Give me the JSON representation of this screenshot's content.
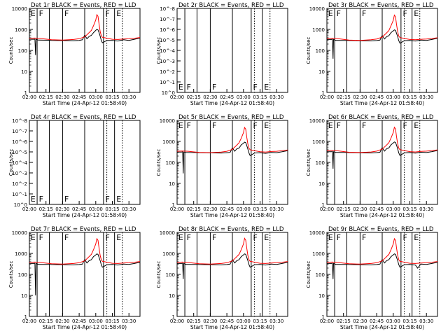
{
  "window": {
    "width": 640,
    "height": 480
  },
  "colors": {
    "events": "#000000",
    "lld": "#ff0000",
    "background": "#ffffff",
    "axis": "#000000"
  },
  "common": {
    "xlabel": "Start Time (24-Apr-12 01:58:40)",
    "ylabel": "Counts/sec",
    "x_ticks": [
      "02:00",
      "02:15",
      "02:30",
      "02:45",
      "03:00",
      "03:15",
      "03:30"
    ],
    "x_tick_minutes": [
      120,
      135,
      150,
      165,
      180,
      195,
      210
    ],
    "xlim_minutes": [
      120,
      220
    ],
    "flag_lines_minutes": [
      127,
      138,
      150,
      170,
      187,
      197
    ],
    "dotted_lines_minutes": [
      190,
      204
    ],
    "flag_letters": [
      {
        "minute": 120.5,
        "text": "E"
      },
      {
        "minute": 128,
        "text": "F"
      },
      {
        "minute": 151,
        "text": "F"
      },
      {
        "minute": 188,
        "text": "F"
      },
      {
        "minute": 198,
        "text": "E"
      }
    ]
  },
  "chart_data": [
    {
      "type": "line",
      "title": "Det 1r BLACK = Events, RED = LLD",
      "yscale": "log",
      "ylim": [
        1,
        10000
      ],
      "y_ticks": [
        "1",
        "10",
        "100",
        "1000",
        "10000"
      ],
      "has_data": true,
      "series": [
        {
          "name": "Events",
          "color": "#000000",
          "x": [
            120,
            124,
            125,
            125.6,
            126,
            128,
            138,
            140,
            150,
            160,
            165,
            168,
            170,
            172,
            174,
            176,
            178,
            180,
            181,
            182,
            183,
            184,
            185,
            186,
            188,
            190,
            195,
            200,
            205,
            210,
            215,
            220
          ],
          "y": [
            340,
            340,
            345,
            60,
            340,
            310,
            305,
            300,
            295,
            290,
            300,
            320,
            540,
            360,
            460,
            520,
            700,
            900,
            1000,
            950,
            700,
            480,
            300,
            230,
            260,
            300,
            300,
            280,
            320,
            300,
            340,
            390
          ]
        },
        {
          "name": "LLD",
          "color": "#ff0000",
          "x": [
            120,
            125,
            130,
            140,
            150,
            160,
            165,
            170,
            174,
            176,
            178,
            180,
            181,
            182,
            183,
            184,
            185,
            186,
            188,
            190,
            195,
            200,
            205,
            210,
            215,
            220
          ],
          "y": [
            380,
            385,
            370,
            320,
            310,
            330,
            360,
            440,
            700,
            900,
            1500,
            2800,
            5000,
            4200,
            1800,
            800,
            500,
            420,
            400,
            380,
            340,
            330,
            350,
            360,
            380,
            410
          ]
        }
      ]
    },
    {
      "type": "line",
      "title": "Det 2r BLACK = Events, RED = LLD",
      "yscale": "log",
      "ylim": [
        1,
        1e-08
      ],
      "y_ticks": [
        "10^0",
        "10^-1",
        "10^-2",
        "10^-3",
        "10^-4",
        "10^-5",
        "10^-6",
        "10^-7",
        "10^-8"
      ],
      "has_data": false,
      "series": []
    },
    {
      "type": "line",
      "title": "Det 3r BLACK = Events, RED = LLD",
      "yscale": "log",
      "ylim": [
        1,
        10000
      ],
      "y_ticks": [
        "1",
        "10",
        "100",
        "1000",
        "10000"
      ],
      "has_data": true,
      "series": [
        {
          "name": "Events",
          "color": "#000000",
          "x": [
            120,
            124,
            125,
            125.6,
            126,
            128,
            138,
            140,
            150,
            160,
            165,
            168,
            170,
            172,
            174,
            176,
            178,
            180,
            181,
            182,
            183,
            184,
            185,
            186,
            188,
            190,
            195,
            200,
            205,
            210,
            215,
            220
          ],
          "y": [
            330,
            330,
            340,
            40,
            330,
            300,
            300,
            295,
            290,
            285,
            295,
            310,
            520,
            350,
            450,
            500,
            700,
            850,
            950,
            900,
            650,
            450,
            290,
            220,
            250,
            290,
            300,
            280,
            310,
            300,
            330,
            380
          ]
        },
        {
          "name": "LLD",
          "color": "#ff0000",
          "x": [
            120,
            125,
            130,
            140,
            150,
            160,
            165,
            170,
            174,
            176,
            178,
            180,
            181,
            182,
            183,
            184,
            185,
            186,
            188,
            190,
            195,
            200,
            205,
            210,
            215,
            220
          ],
          "y": [
            370,
            380,
            360,
            310,
            300,
            320,
            350,
            430,
            680,
            880,
            1500,
            2700,
            4800,
            4000,
            1700,
            780,
            480,
            410,
            390,
            370,
            330,
            320,
            340,
            350,
            370,
            400
          ]
        }
      ]
    },
    {
      "type": "line",
      "title": "Det 4r BLACK = Events, RED = LLD",
      "yscale": "log",
      "ylim": [
        1,
        1e-08
      ],
      "y_ticks": [
        "10^0",
        "10^-1",
        "10^-2",
        "10^-3",
        "10^-4",
        "10^-5",
        "10^-6",
        "10^-7",
        "10^-8"
      ],
      "has_data": false,
      "series": []
    },
    {
      "type": "line",
      "title": "Det 5r BLACK = Events, RED = LLD",
      "yscale": "log",
      "ylim": [
        1,
        10000
      ],
      "y_ticks": [
        "1",
        "10",
        "100",
        "1000",
        "10000"
      ],
      "has_data": true,
      "series": [
        {
          "name": "Events",
          "color": "#000000",
          "x": [
            120,
            124,
            125,
            125.6,
            126,
            128,
            138,
            140,
            150,
            160,
            165,
            168,
            170,
            172,
            174,
            176,
            178,
            180,
            181,
            182,
            183,
            184,
            185,
            186,
            188,
            190,
            195,
            200,
            205,
            210,
            215,
            220
          ],
          "y": [
            310,
            310,
            320,
            30,
            310,
            300,
            295,
            290,
            285,
            280,
            290,
            300,
            500,
            340,
            440,
            480,
            680,
            820,
            920,
            880,
            640,
            430,
            280,
            210,
            240,
            280,
            290,
            270,
            300,
            290,
            320,
            360
          ]
        },
        {
          "name": "LLD",
          "color": "#ff0000",
          "x": [
            120,
            125,
            130,
            140,
            150,
            160,
            165,
            170,
            174,
            176,
            178,
            180,
            181,
            182,
            183,
            184,
            185,
            186,
            188,
            190,
            195,
            200,
            205,
            210,
            215,
            220
          ],
          "y": [
            340,
            350,
            340,
            300,
            290,
            310,
            340,
            420,
            660,
            860,
            1400,
            2600,
            4600,
            3900,
            1600,
            760,
            470,
            400,
            380,
            360,
            320,
            310,
            330,
            340,
            360,
            390
          ]
        }
      ]
    },
    {
      "type": "line",
      "title": "Det 6r BLACK = Events, RED = LLD",
      "yscale": "log",
      "ylim": [
        1,
        10000
      ],
      "y_ticks": [
        "1",
        "10",
        "100",
        "1000",
        "10000"
      ],
      "has_data": true,
      "series": [
        {
          "name": "Events",
          "color": "#000000",
          "x": [
            120,
            124,
            125,
            125.6,
            126,
            128,
            138,
            140,
            150,
            160,
            165,
            168,
            170,
            172,
            174,
            176,
            178,
            180,
            181,
            182,
            183,
            184,
            185,
            186,
            188,
            190,
            195,
            200,
            205,
            210,
            215,
            220
          ],
          "y": [
            320,
            320,
            330,
            50,
            320,
            300,
            298,
            292,
            288,
            282,
            292,
            305,
            510,
            345,
            445,
            490,
            690,
            840,
            940,
            890,
            660,
            440,
            285,
            215,
            245,
            285,
            295,
            275,
            305,
            295,
            325,
            370
          ]
        },
        {
          "name": "LLD",
          "color": "#ff0000",
          "x": [
            120,
            125,
            130,
            140,
            150,
            160,
            165,
            170,
            174,
            176,
            178,
            180,
            181,
            182,
            183,
            184,
            185,
            186,
            188,
            190,
            195,
            200,
            205,
            210,
            215,
            220
          ],
          "y": [
            360,
            370,
            355,
            305,
            295,
            315,
            345,
            425,
            670,
            870,
            1450,
            2650,
            4700,
            3950,
            1650,
            770,
            475,
            405,
            385,
            365,
            325,
            315,
            335,
            345,
            365,
            395
          ]
        }
      ]
    },
    {
      "type": "line",
      "title": "Det 7r BLACK = Events, RED = LLD",
      "yscale": "log",
      "ylim": [
        1,
        10000
      ],
      "y_ticks": [
        "1",
        "10",
        "100",
        "1000",
        "10000"
      ],
      "has_data": true,
      "series": [
        {
          "name": "Events",
          "color": "#000000",
          "x": [
            120,
            124,
            125,
            125.6,
            126,
            128,
            138,
            140,
            150,
            160,
            165,
            168,
            170,
            172,
            174,
            176,
            178,
            180,
            181,
            182,
            183,
            184,
            185,
            186,
            188,
            190,
            195,
            200,
            205,
            210,
            215,
            220
          ],
          "y": [
            330,
            330,
            340,
            10,
            330,
            300,
            300,
            295,
            290,
            285,
            295,
            310,
            520,
            350,
            450,
            500,
            700,
            850,
            950,
            900,
            650,
            450,
            290,
            220,
            250,
            290,
            300,
            280,
            310,
            300,
            330,
            380
          ]
        },
        {
          "name": "LLD",
          "color": "#ff0000",
          "x": [
            120,
            125,
            130,
            140,
            150,
            160,
            165,
            170,
            174,
            176,
            178,
            180,
            181,
            182,
            183,
            184,
            185,
            186,
            188,
            190,
            195,
            200,
            205,
            210,
            215,
            220
          ],
          "y": [
            380,
            385,
            370,
            320,
            310,
            330,
            360,
            440,
            700,
            900,
            1500,
            2800,
            5000,
            4200,
            1800,
            800,
            500,
            420,
            400,
            380,
            340,
            330,
            350,
            360,
            380,
            410
          ]
        }
      ]
    },
    {
      "type": "line",
      "title": "Det 8r BLACK = Events, RED = LLD",
      "yscale": "log",
      "ylim": [
        1,
        10000
      ],
      "y_ticks": [
        "1",
        "10",
        "100",
        "1000",
        "10000"
      ],
      "has_data": true,
      "series": [
        {
          "name": "Events",
          "color": "#000000",
          "x": [
            120,
            124,
            125,
            125.6,
            126,
            128,
            138,
            140,
            150,
            160,
            165,
            168,
            170,
            172,
            174,
            176,
            178,
            180,
            181,
            182,
            183,
            184,
            185,
            186,
            188,
            190,
            195,
            200,
            205,
            210,
            215,
            220
          ],
          "y": [
            330,
            330,
            340,
            60,
            330,
            300,
            300,
            295,
            290,
            285,
            295,
            310,
            520,
            350,
            450,
            500,
            700,
            850,
            950,
            900,
            650,
            450,
            290,
            220,
            250,
            290,
            300,
            280,
            310,
            300,
            330,
            380
          ]
        },
        {
          "name": "LLD",
          "color": "#ff0000",
          "x": [
            120,
            125,
            130,
            140,
            150,
            160,
            165,
            170,
            174,
            176,
            178,
            180,
            181,
            182,
            183,
            184,
            185,
            186,
            188,
            190,
            195,
            200,
            205,
            210,
            215,
            220
          ],
          "y": [
            380,
            385,
            370,
            320,
            310,
            330,
            360,
            440,
            700,
            900,
            1500,
            2800,
            5200,
            4300,
            1800,
            800,
            500,
            420,
            400,
            380,
            340,
            330,
            350,
            360,
            380,
            410
          ]
        }
      ]
    },
    {
      "type": "line",
      "title": "Det 9r BLACK = Events, RED = LLD",
      "yscale": "log",
      "ylim": [
        1,
        10000
      ],
      "y_ticks": [
        "1",
        "10",
        "100",
        "1000",
        "10000"
      ],
      "has_data": true,
      "series": [
        {
          "name": "Events",
          "color": "#000000",
          "x": [
            120,
            124,
            125,
            125.6,
            126,
            128,
            138,
            140,
            150,
            160,
            165,
            168,
            170,
            172,
            174,
            176,
            178,
            180,
            181,
            182,
            183,
            184,
            185,
            186,
            188,
            190,
            195,
            200,
            202,
            205,
            210,
            215,
            220
          ],
          "y": [
            330,
            330,
            340,
            60,
            330,
            300,
            300,
            295,
            290,
            285,
            295,
            310,
            520,
            350,
            450,
            500,
            700,
            850,
            950,
            900,
            650,
            450,
            290,
            220,
            250,
            290,
            300,
            280,
            200,
            310,
            300,
            330,
            380
          ]
        },
        {
          "name": "LLD",
          "color": "#ff0000",
          "x": [
            120,
            125,
            130,
            140,
            150,
            160,
            165,
            170,
            174,
            176,
            178,
            180,
            181,
            182,
            183,
            184,
            185,
            186,
            188,
            190,
            195,
            200,
            205,
            210,
            215,
            220
          ],
          "y": [
            380,
            385,
            370,
            320,
            310,
            330,
            360,
            440,
            700,
            900,
            1500,
            2800,
            5000,
            4200,
            1800,
            800,
            500,
            420,
            400,
            380,
            340,
            330,
            350,
            360,
            380,
            410
          ]
        }
      ]
    }
  ]
}
